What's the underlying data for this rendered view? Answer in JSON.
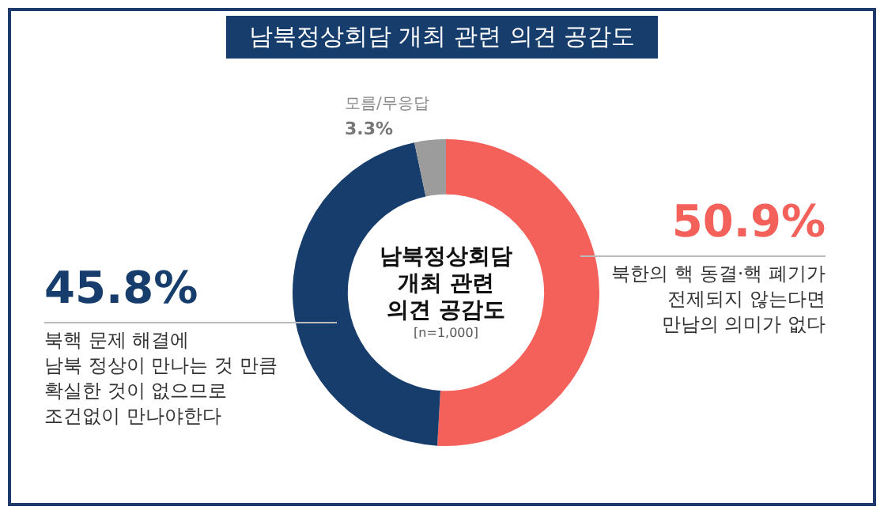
{
  "chart_data": {
    "type": "donut",
    "title": "남북정상회담 개최 관련 의견 공감도",
    "categories": [
      "북한의 핵 동결·핵 폐기가\n전제되지 않는다면\n만남의 의미가 없다",
      "북핵 문제 해결에\n남북 정상이 만나는 것 만큼\n확실한 것이 없으므로\n조건없이 만나야한다",
      "모름/무응답"
    ],
    "values": [
      50.9,
      45.8,
      3.3
    ],
    "value_labels": [
      "50.9%",
      "45.8%",
      "3.3%"
    ],
    "colors": [
      "#f4605a",
      "#173d6c",
      "#9c9c9c"
    ],
    "annotations": [
      "남북정상회담\n개최 관련\n의견 공감도",
      "[n=1,000]"
    ],
    "legend": false
  }
}
